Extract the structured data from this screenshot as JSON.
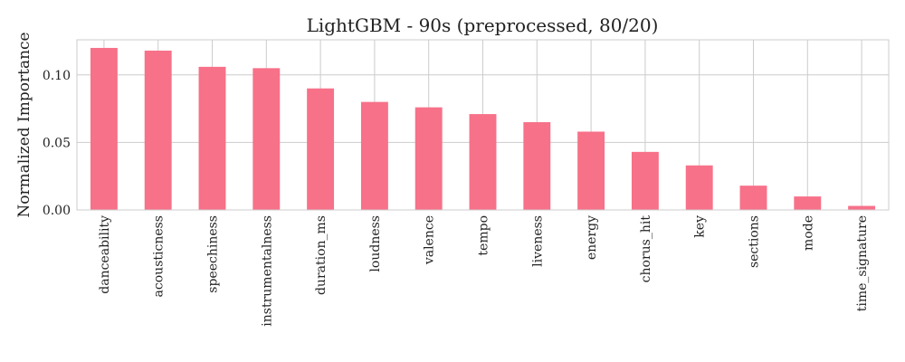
{
  "chart_data": {
    "type": "bar",
    "title": "LightGBM - 90s (preprocessed, 80/20)",
    "xlabel": "",
    "ylabel": "Normalized Importance",
    "categories": [
      "danceability",
      "acousticness",
      "speechiness",
      "instrumentalness",
      "duration_ms",
      "loudness",
      "valence",
      "tempo",
      "liveness",
      "energy",
      "chorus_hit",
      "key",
      "sections",
      "mode",
      "time_signature"
    ],
    "values": [
      0.12,
      0.118,
      0.106,
      0.105,
      0.09,
      0.08,
      0.076,
      0.071,
      0.065,
      0.058,
      0.043,
      0.033,
      0.018,
      0.01,
      0.003
    ],
    "yticks": [
      0.0,
      0.05,
      0.1
    ],
    "ytick_labels": [
      "0.00",
      "0.05",
      "0.10"
    ],
    "ylim": [
      0,
      0.126
    ],
    "grid": true,
    "bar_color": "#f77189"
  }
}
